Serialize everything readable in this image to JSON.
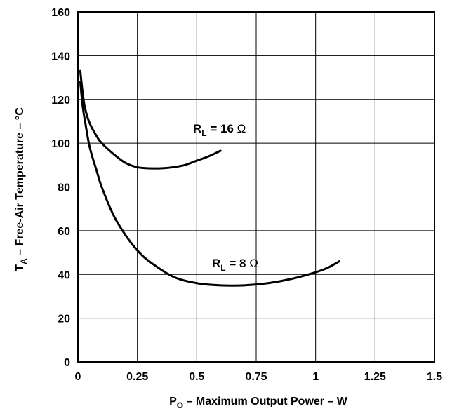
{
  "chart_data": {
    "type": "line",
    "title": "",
    "xlabel": {
      "symbol": "P",
      "subscript": "O",
      "text": " – Maximum Output Power – W"
    },
    "ylabel": {
      "symbol": "T",
      "subscript": "A",
      "text": " – Free-Air Temperature – ",
      "unit": "°C"
    },
    "xlim": [
      0,
      1.5
    ],
    "ylim": [
      0,
      160
    ],
    "x_ticks": [
      "0",
      "0.25",
      "0.5",
      "0.75",
      "1",
      "1.25",
      "1.5"
    ],
    "y_ticks": [
      "0",
      "20",
      "40",
      "60",
      "80",
      "100",
      "120",
      "140",
      "160"
    ],
    "grid": true,
    "series": [
      {
        "name": "R_L = 16 Ω",
        "label": {
          "symbol": "R",
          "subscript": "L",
          "text": " = 16 ",
          "unit": "Ω"
        },
        "x": [
          0.01,
          0.02,
          0.03,
          0.05,
          0.08,
          0.1,
          0.15,
          0.2,
          0.25,
          0.3,
          0.35,
          0.4,
          0.45,
          0.5,
          0.55,
          0.6
        ],
        "y": [
          133,
          123,
          116,
          109,
          103,
          100,
          95,
          91,
          89,
          88.5,
          88.5,
          89,
          90,
          92,
          94,
          96.5
        ]
      },
      {
        "name": "R_L = 8 Ω",
        "label": {
          "symbol": "R",
          "subscript": "L",
          "text": " = 8 ",
          "unit": "Ω"
        },
        "x": [
          0.01,
          0.02,
          0.03,
          0.05,
          0.08,
          0.1,
          0.15,
          0.2,
          0.25,
          0.3,
          0.4,
          0.5,
          0.6,
          0.7,
          0.8,
          0.9,
          1.0,
          1.05,
          1.1
        ],
        "y": [
          128,
          117,
          110,
          98,
          87,
          80,
          67,
          58,
          51,
          46,
          39,
          36,
          35,
          35,
          36,
          38,
          41,
          43,
          46
        ]
      }
    ]
  }
}
